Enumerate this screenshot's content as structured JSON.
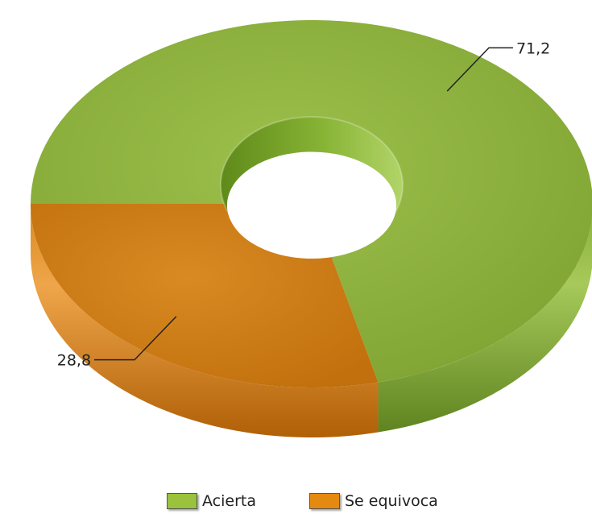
{
  "chart_data": {
    "type": "pie",
    "style": "3d-donut",
    "slices": [
      {
        "label": "Acierta",
        "value": 71.2,
        "value_label": "71,2",
        "color": "#8fb23e"
      },
      {
        "label": "Se equivoca",
        "value": 28.8,
        "value_label": "28,8",
        "color": "#cf7f18"
      }
    ],
    "legend_position": "bottom"
  },
  "legend": {
    "items": [
      {
        "label": "Acierta",
        "color": "#9ac23c"
      },
      {
        "label": "Se equivoca",
        "color": "#e58a10"
      }
    ]
  }
}
